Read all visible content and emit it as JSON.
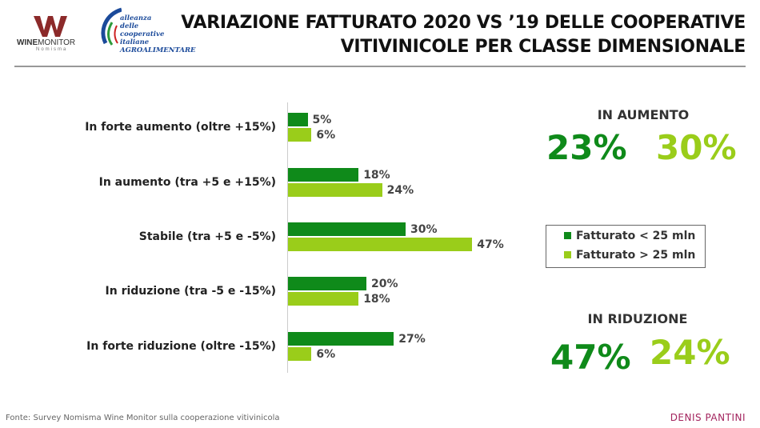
{
  "header": {
    "title_line1": "VARIAZIONE FATTURATO 2020 VS ’19 DELLE COOPERATIVE",
    "title_line2": "VITIVINICOLE PER CLASSE DIMENSIONALE",
    "logo1": "WINEMONITOR Nomisma",
    "logo2": "alleanza delle cooperative italiane AGROALIMENTARE"
  },
  "chart_data": {
    "type": "bar",
    "orientation": "horizontal",
    "categories": [
      "In forte aumento (oltre +15%)",
      "In aumento (tra +5 e +15%)",
      "Stabile (tra +5 e -5%)",
      "In riduzione (tra -5 e -15%)",
      "In forte riduzione (oltre -15%)"
    ],
    "series": [
      {
        "name": "Fatturato < 25 mln",
        "color": "#0f8a1a",
        "values": [
          5,
          18,
          30,
          20,
          27
        ],
        "labels": [
          "5%",
          "18%",
          "30%",
          "20%",
          "27%"
        ]
      },
      {
        "name": "Fatturato > 25 mln",
        "color": "#9acd1a",
        "values": [
          6,
          24,
          47,
          18,
          6
        ],
        "labels": [
          "6%",
          "24%",
          "47%",
          "18%",
          "6%"
        ]
      }
    ],
    "unit": "%",
    "legend": "right"
  },
  "kpi": {
    "up": {
      "label": "IN AUMENTO",
      "small": "23%",
      "large": "30%"
    },
    "down": {
      "label": "IN RIDUZIONE",
      "small": "47%",
      "large": "24%"
    }
  },
  "footer": {
    "source": "Fonte: Survey Nomisma Wine Monitor sulla cooperazione vitivinicola",
    "author": "DENIS PANTINI"
  }
}
